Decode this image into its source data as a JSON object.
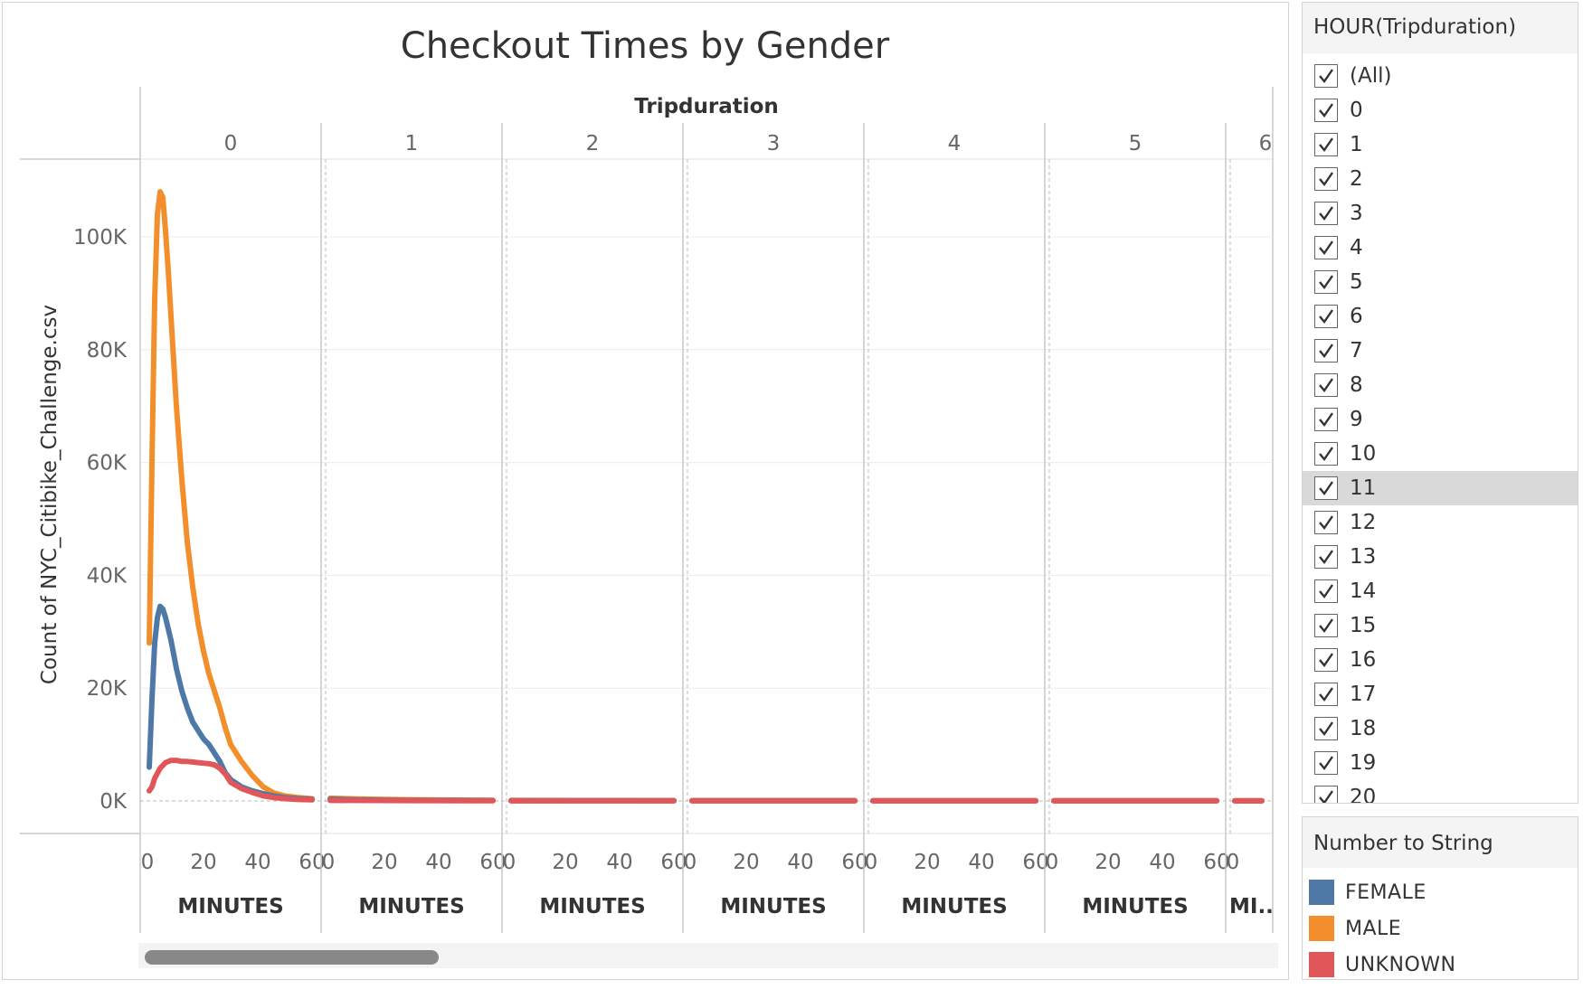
{
  "chart_data": {
    "type": "line",
    "title": "Checkout Times by Gender",
    "column_header": "Tripduration",
    "ylabel": "Count of NYC_Citibike_Challenge.csv",
    "xlabel": "MINUTES",
    "last_panel_xlabel": "MI..",
    "ylim": [
      0,
      112000
    ],
    "yticks": [
      "0K",
      "20K",
      "40K",
      "60K",
      "80K",
      "100K"
    ],
    "ytick_values": [
      0,
      20000,
      40000,
      60000,
      80000,
      100000
    ],
    "panels": [
      "0",
      "1",
      "2",
      "3",
      "4",
      "5",
      "6"
    ],
    "xticks": [
      "0",
      "20",
      "40",
      "60"
    ],
    "xtick_values": [
      0,
      20,
      40,
      60
    ],
    "xlim": [
      0,
      60
    ],
    "series": [
      {
        "name": "FEMALE",
        "color": "#4e79a7",
        "points_by_panel": [
          [
            [
              0,
              6000
            ],
            [
              1,
              18000
            ],
            [
              2,
              28000
            ],
            [
              3,
              32500
            ],
            [
              4,
              34500
            ],
            [
              5,
              34000
            ],
            [
              6,
              32500
            ],
            [
              8,
              28500
            ],
            [
              10,
              23500
            ],
            [
              12,
              19500
            ],
            [
              14,
              16500
            ],
            [
              16,
              14000
            ],
            [
              18,
              12500
            ],
            [
              20,
              11000
            ],
            [
              22,
              10000
            ],
            [
              24,
              8500
            ],
            [
              26,
              7000
            ],
            [
              28,
              5000
            ],
            [
              30,
              3800
            ],
            [
              34,
              2500
            ],
            [
              38,
              1800
            ],
            [
              42,
              1300
            ],
            [
              46,
              900
            ],
            [
              50,
              600
            ],
            [
              55,
              400
            ],
            [
              60,
              300
            ]
          ],
          [
            [
              0,
              300
            ],
            [
              10,
              200
            ],
            [
              20,
              150
            ],
            [
              30,
              120
            ],
            [
              40,
              100
            ],
            [
              50,
              90
            ],
            [
              60,
              80
            ]
          ],
          [
            [
              0,
              60
            ],
            [
              60,
              50
            ]
          ],
          [
            [
              0,
              40
            ],
            [
              60,
              40
            ]
          ],
          [
            [
              0,
              30
            ],
            [
              60,
              30
            ]
          ],
          [
            [
              0,
              25
            ],
            [
              60,
              25
            ]
          ],
          [
            [
              0,
              20
            ],
            [
              10,
              20
            ]
          ]
        ]
      },
      {
        "name": "MALE",
        "color": "#f28e2b",
        "points_by_panel": [
          [
            [
              0,
              28000
            ],
            [
              1,
              60000
            ],
            [
              2,
              89000
            ],
            [
              3,
              104000
            ],
            [
              4,
              108000
            ],
            [
              5,
              107000
            ],
            [
              6,
              101000
            ],
            [
              7,
              94000
            ],
            [
              8,
              86000
            ],
            [
              10,
              70000
            ],
            [
              12,
              57000
            ],
            [
              14,
              46000
            ],
            [
              16,
              38000
            ],
            [
              18,
              31500
            ],
            [
              20,
              26500
            ],
            [
              22,
              22500
            ],
            [
              24,
              19500
            ],
            [
              26,
              16500
            ],
            [
              28,
              13000
            ],
            [
              30,
              10000
            ],
            [
              34,
              7000
            ],
            [
              38,
              4500
            ],
            [
              42,
              2500
            ],
            [
              46,
              1400
            ],
            [
              50,
              900
            ],
            [
              55,
              600
            ],
            [
              60,
              400
            ]
          ],
          [
            [
              0,
              500
            ],
            [
              10,
              350
            ],
            [
              20,
              280
            ],
            [
              30,
              220
            ],
            [
              40,
              180
            ],
            [
              50,
              150
            ],
            [
              60,
              130
            ]
          ],
          [
            [
              0,
              90
            ],
            [
              60,
              80
            ]
          ],
          [
            [
              0,
              70
            ],
            [
              60,
              60
            ]
          ],
          [
            [
              0,
              50
            ],
            [
              60,
              45
            ]
          ],
          [
            [
              0,
              40
            ],
            [
              60,
              35
            ]
          ],
          [
            [
              0,
              30
            ],
            [
              10,
              30
            ]
          ]
        ]
      },
      {
        "name": "UNKNOWN",
        "color": "#e15759",
        "points_by_panel": [
          [
            [
              0,
              1800
            ],
            [
              1,
              2500
            ],
            [
              2,
              4000
            ],
            [
              4,
              5800
            ],
            [
              6,
              6800
            ],
            [
              8,
              7200
            ],
            [
              10,
              7200
            ],
            [
              12,
              7000
            ],
            [
              14,
              7000
            ],
            [
              16,
              6900
            ],
            [
              18,
              6800
            ],
            [
              20,
              6700
            ],
            [
              22,
              6600
            ],
            [
              24,
              6400
            ],
            [
              26,
              5800
            ],
            [
              28,
              4800
            ],
            [
              30,
              3300
            ],
            [
              34,
              2200
            ],
            [
              38,
              1500
            ],
            [
              42,
              900
            ],
            [
              46,
              600
            ],
            [
              50,
              400
            ],
            [
              55,
              250
            ],
            [
              60,
              200
            ]
          ],
          [
            [
              0,
              100
            ],
            [
              30,
              60
            ],
            [
              60,
              40
            ]
          ],
          [
            [
              0,
              20
            ],
            [
              60,
              20
            ]
          ],
          [
            [
              0,
              15
            ],
            [
              60,
              15
            ]
          ],
          [
            [
              0,
              10
            ],
            [
              60,
              10
            ]
          ],
          [
            [
              0,
              10
            ],
            [
              60,
              10
            ]
          ],
          [
            [
              0,
              10
            ],
            [
              10,
              10
            ]
          ]
        ]
      }
    ],
    "grid": true
  },
  "filter": {
    "title": "HOUR(Tripduration)",
    "items": [
      "(All)",
      "0",
      "1",
      "2",
      "3",
      "4",
      "5",
      "6",
      "7",
      "8",
      "9",
      "10",
      "11",
      "12",
      "13",
      "14",
      "15",
      "16",
      "17",
      "18",
      "19",
      "20"
    ],
    "selected_highlight": "11"
  },
  "legend": {
    "title": "Number to String",
    "items": [
      {
        "label": "FEMALE",
        "color": "#4e79a7"
      },
      {
        "label": "MALE",
        "color": "#f28e2b"
      },
      {
        "label": "UNKNOWN",
        "color": "#e15759"
      }
    ]
  }
}
